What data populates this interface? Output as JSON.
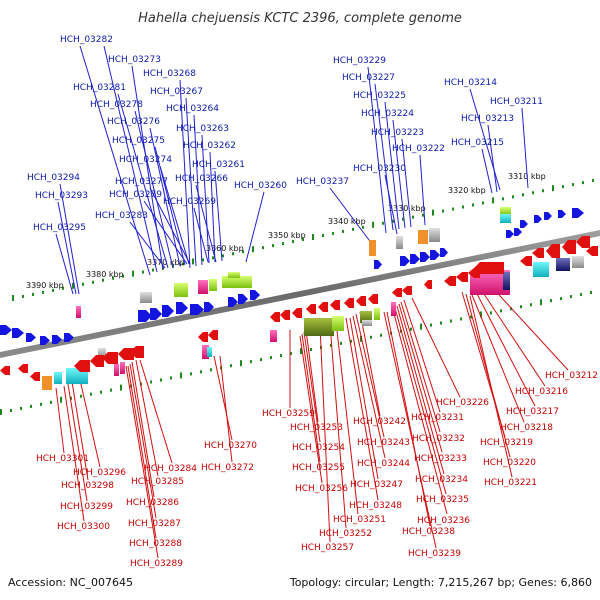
{
  "title": "Hahella chejuensis KCTC 2396, complete genome",
  "footer": {
    "accession": "Accession: NC_007645",
    "summary": "Topology: circular; Length: 7,215,267 bp; Genes: 6,860"
  },
  "axis_labels": [
    "3310 kbp",
    "3320 kbp",
    "3330 kbp",
    "3340 kbp",
    "3350 kbp",
    "3360 kbp",
    "3370 kbp",
    "3380 kbp",
    "3390 kbp"
  ],
  "top_genes": [
    "HCH_03282",
    "HCH_03273",
    "HCH_03268",
    "HCH_03281",
    "HCH_03267",
    "HCH_03278",
    "HCH_03264",
    "HCH_03276",
    "HCH_03263",
    "HCH_03275",
    "HCH_03262",
    "HCH_03274",
    "HCH_03261",
    "HCH_03294",
    "HCH_03277",
    "HCH_03266",
    "HCH_03260",
    "HCH_03293",
    "HCH_03279",
    "HCH_03269",
    "HCH_03283",
    "HCH_03295",
    "HCH_03229",
    "HCH_03227",
    "HCH_03225",
    "HCH_03224",
    "HCH_03223",
    "HCH_03222",
    "HCH_03230",
    "HCH_03237",
    "HCH_03214",
    "HCH_03211",
    "HCH_03213",
    "HCH_03215"
  ],
  "bottom_genes": [
    "HCH_03212",
    "HCH_03216",
    "HCH_03217",
    "HCH_03218",
    "HCH_03219",
    "HCH_03220",
    "HCH_03221",
    "HCH_03226",
    "HCH_03231",
    "HCH_03232",
    "HCH_03233",
    "HCH_03234",
    "HCH_03235",
    "HCH_03236",
    "HCH_03238",
    "HCH_03239",
    "HCH_03242",
    "HCH_03243",
    "HCH_03244",
    "HCH_03247",
    "HCH_03248",
    "HCH_03251",
    "HCH_03252",
    "HCH_03257",
    "HCH_03259",
    "HCH_03253",
    "HCH_03254",
    "HCH_03255",
    "HCH_03256",
    "HCH_03270",
    "HCH_03272",
    "HCH_03284",
    "HCH_03285",
    "HCH_03286",
    "HCH_03287",
    "HCH_03288",
    "HCH_03289",
    "HCH_03296",
    "HCH_03298",
    "HCH_03299",
    "HCH_03300",
    "HCH_03301"
  ],
  "colors": {
    "top_label": "#0b1aa8",
    "bottom_label": "#c40000",
    "backbone": "#7a7a7a",
    "scale_dots": "#1e8a1e",
    "forward_arrow": "#1515e0",
    "reverse_arrow": "#e01010"
  }
}
